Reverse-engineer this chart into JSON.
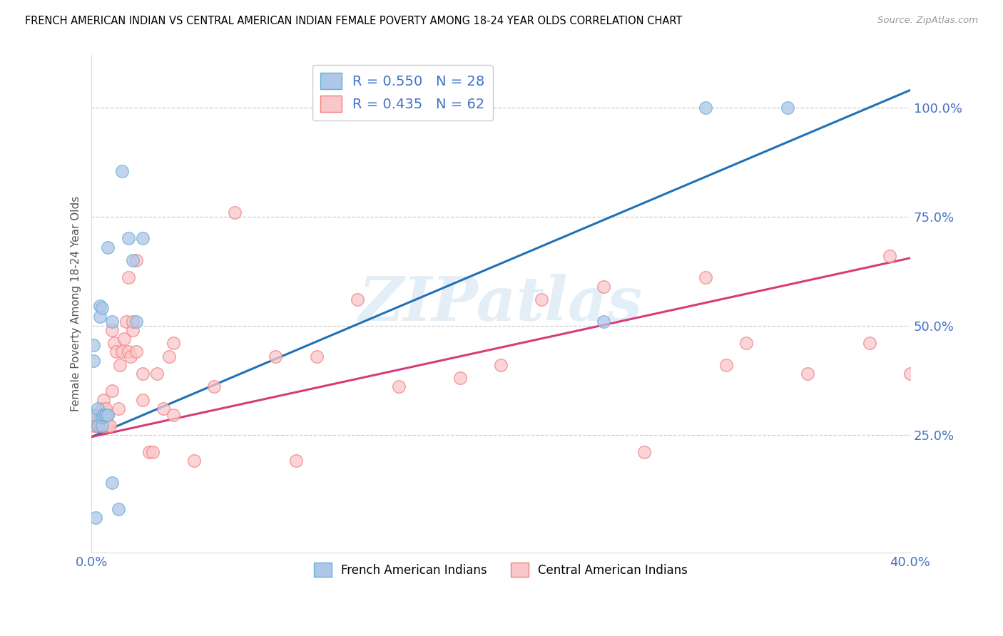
{
  "title": "FRENCH AMERICAN INDIAN VS CENTRAL AMERICAN INDIAN FEMALE POVERTY AMONG 18-24 YEAR OLDS CORRELATION CHART",
  "source": "Source: ZipAtlas.com",
  "ylabel": "Female Poverty Among 18-24 Year Olds",
  "xlim": [
    0.0,
    0.4
  ],
  "ylim": [
    -0.02,
    1.12
  ],
  "xticks": [
    0.0,
    0.05,
    0.1,
    0.15,
    0.2,
    0.25,
    0.3,
    0.35,
    0.4
  ],
  "yticks_right": [
    0.25,
    0.5,
    0.75,
    1.0
  ],
  "ytick_right_labels": [
    "25.0%",
    "50.0%",
    "75.0%",
    "100.0%"
  ],
  "legend_blue_R": 0.55,
  "legend_blue_N": 28,
  "legend_pink_R": 0.435,
  "legend_pink_N": 62,
  "blue_fill_color": "#aec6e8",
  "blue_edge_color": "#6aaed6",
  "pink_fill_color": "#f9c6c9",
  "pink_edge_color": "#f08080",
  "blue_line_color": "#2171b5",
  "pink_line_color": "#d63c7a",
  "watermark_text": "ZIPatlas",
  "blue_label": "French American Indians",
  "pink_label": "Central American Indians",
  "blue_line_x0": 0.0,
  "blue_line_y0": 0.245,
  "blue_line_x1": 0.4,
  "blue_line_y1": 1.04,
  "pink_line_x0": 0.0,
  "pink_line_y0": 0.245,
  "pink_line_x1": 0.4,
  "pink_line_y1": 0.655,
  "blue_x": [
    0.001,
    0.001,
    0.001,
    0.002,
    0.003,
    0.003,
    0.004,
    0.004,
    0.005,
    0.005,
    0.005,
    0.006,
    0.006,
    0.007,
    0.007,
    0.008,
    0.008,
    0.01,
    0.01,
    0.013,
    0.015,
    0.018,
    0.02,
    0.022,
    0.025,
    0.25,
    0.3,
    0.34
  ],
  "blue_y": [
    0.295,
    0.42,
    0.455,
    0.06,
    0.27,
    0.31,
    0.52,
    0.545,
    0.27,
    0.29,
    0.54,
    0.295,
    0.295,
    0.295,
    0.295,
    0.295,
    0.68,
    0.14,
    0.51,
    0.08,
    0.855,
    0.7,
    0.65,
    0.51,
    0.7,
    0.51,
    1.0,
    1.0
  ],
  "pink_x": [
    0.001,
    0.001,
    0.002,
    0.003,
    0.003,
    0.004,
    0.004,
    0.005,
    0.005,
    0.005,
    0.006,
    0.006,
    0.007,
    0.007,
    0.008,
    0.008,
    0.009,
    0.01,
    0.01,
    0.011,
    0.012,
    0.013,
    0.014,
    0.015,
    0.016,
    0.017,
    0.018,
    0.018,
    0.019,
    0.02,
    0.02,
    0.022,
    0.022,
    0.025,
    0.025,
    0.028,
    0.03,
    0.032,
    0.035,
    0.038,
    0.04,
    0.05,
    0.06,
    0.07,
    0.09,
    0.1,
    0.11,
    0.13,
    0.15,
    0.18,
    0.2,
    0.22,
    0.25,
    0.27,
    0.3,
    0.31,
    0.32,
    0.35,
    0.38,
    0.39,
    0.4,
    0.04
  ],
  "pink_y": [
    0.27,
    0.295,
    0.27,
    0.27,
    0.295,
    0.27,
    0.295,
    0.27,
    0.295,
    0.31,
    0.27,
    0.33,
    0.27,
    0.31,
    0.27,
    0.295,
    0.27,
    0.35,
    0.49,
    0.46,
    0.44,
    0.31,
    0.41,
    0.44,
    0.47,
    0.51,
    0.44,
    0.61,
    0.43,
    0.49,
    0.51,
    0.44,
    0.65,
    0.33,
    0.39,
    0.21,
    0.21,
    0.39,
    0.31,
    0.43,
    0.46,
    0.19,
    0.36,
    0.76,
    0.43,
    0.19,
    0.43,
    0.56,
    0.36,
    0.38,
    0.41,
    0.56,
    0.59,
    0.21,
    0.61,
    0.41,
    0.46,
    0.39,
    0.46,
    0.66,
    0.39,
    0.295
  ]
}
